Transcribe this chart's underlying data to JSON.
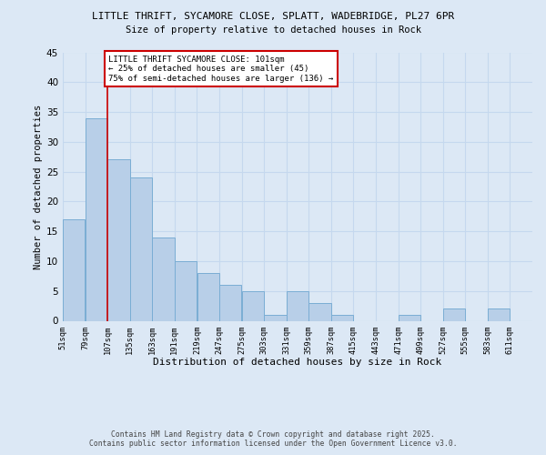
{
  "title": "LITTLE THRIFT, SYCAMORE CLOSE, SPLATT, WADEBRIDGE, PL27 6PR",
  "subtitle": "Size of property relative to detached houses in Rock",
  "xlabel": "Distribution of detached houses by size in Rock",
  "ylabel": "Number of detached properties",
  "bin_labels": [
    "51sqm",
    "79sqm",
    "107sqm",
    "135sqm",
    "163sqm",
    "191sqm",
    "219sqm",
    "247sqm",
    "275sqm",
    "303sqm",
    "331sqm",
    "359sqm",
    "387sqm",
    "415sqm",
    "443sqm",
    "471sqm",
    "499sqm",
    "527sqm",
    "555sqm",
    "583sqm",
    "611sqm"
  ],
  "bins": [
    51,
    79,
    107,
    135,
    163,
    191,
    219,
    247,
    275,
    303,
    331,
    359,
    387,
    415,
    443,
    471,
    499,
    527,
    555,
    583,
    611
  ],
  "counts": [
    17,
    34,
    27,
    24,
    14,
    10,
    8,
    6,
    5,
    1,
    5,
    3,
    1,
    0,
    0,
    1,
    0,
    2,
    0,
    2,
    0
  ],
  "bar_color": "#b8cfe8",
  "bar_edge_color": "#7aadd4",
  "grid_color": "#c5d8ee",
  "background_color": "#dce8f5",
  "vline_x": 107,
  "vline_color": "#cc0000",
  "annotation_box_text": "LITTLE THRIFT SYCAMORE CLOSE: 101sqm\n← 25% of detached houses are smaller (45)\n75% of semi-detached houses are larger (136) →",
  "annotation_box_color": "#cc0000",
  "footer_line1": "Contains HM Land Registry data © Crown copyright and database right 2025.",
  "footer_line2": "Contains public sector information licensed under the Open Government Licence v3.0.",
  "ylim": [
    0,
    45
  ],
  "yticks": [
    0,
    5,
    10,
    15,
    20,
    25,
    30,
    35,
    40,
    45
  ]
}
